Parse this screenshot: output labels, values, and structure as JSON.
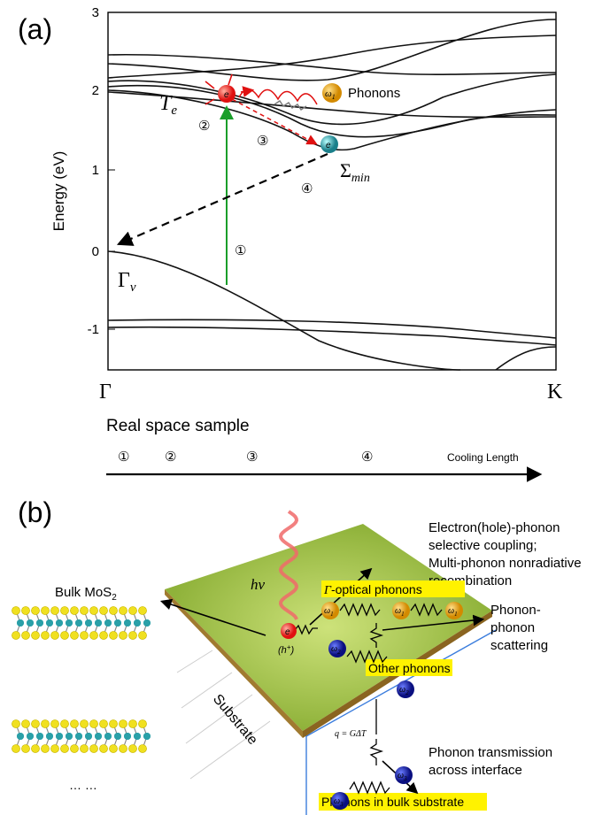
{
  "panel_a": {
    "label": "(a)",
    "y_axis_label": "Energy (eV)",
    "yticks": [
      "3",
      "2",
      "1",
      "0",
      "-1"
    ],
    "x_labels": [
      "Γ",
      "K"
    ],
    "gamma_v": {
      "symbol": "Γ",
      "sub": "v"
    },
    "te": {
      "symbol": "T",
      "sub": "e"
    },
    "sigma_min": {
      "symbol": "Σ",
      "sub": "min"
    },
    "phonons": "Phonons",
    "omega": {
      "symbol": "ω",
      "sub": "1"
    },
    "electron": "e",
    "steps": [
      "①",
      "②",
      "③",
      "④"
    ]
  },
  "real_space": {
    "title": "Real space sample",
    "steps": [
      "①",
      "②",
      "③",
      "④"
    ],
    "axis_label": "Cooling Length"
  },
  "panel_b": {
    "label": "(b)",
    "photon": "hν",
    "coupling_text": [
      "Electron(hole)-phonon",
      "selective coupling;",
      "Multi-phonon nonradiative",
      "recombination"
    ],
    "bulk": {
      "text": "Bulk MoS",
      "sub": "2"
    },
    "ellipsis": "… …",
    "optical_phonons": {
      "symbol": "Γ",
      "text": "-optical phonons"
    },
    "scattering": [
      "Phonon-",
      "phonon",
      "scattering"
    ],
    "other_phonons": "Other phonons",
    "electron": "e",
    "hole": {
      "open": "(h",
      "sup": "+",
      "close": ")"
    },
    "formula": "q = GΔT",
    "transmission": [
      "Phonon transmission",
      "across interface"
    ],
    "bulk_phonons": "Phonons in bulk substrate",
    "substrate": "Substrate",
    "omegas": [
      {
        "symbol": "ω",
        "sub": "1"
      },
      {
        "symbol": "ω",
        "sub": "1"
      },
      {
        "symbol": "ω",
        "sub": "1"
      },
      {
        "symbol": "ω",
        "sub": "2"
      },
      {
        "symbol": "ω",
        "sub": "2"
      },
      {
        "symbol": "ω",
        "sub": "3"
      },
      {
        "symbol": "ω",
        "sub": "3"
      }
    ]
  }
}
